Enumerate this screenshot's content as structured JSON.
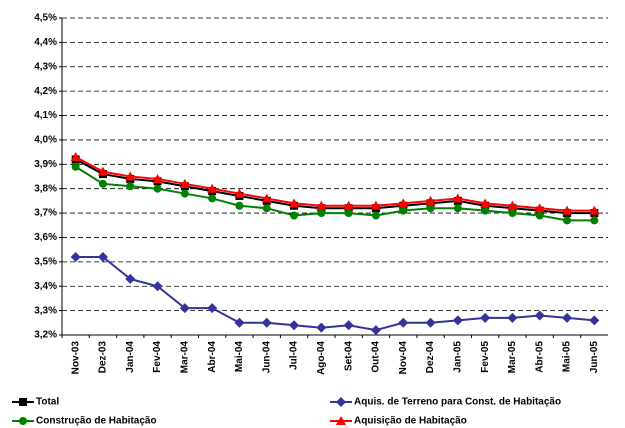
{
  "chart_data": {
    "type": "line",
    "categories": [
      "Nov-03",
      "Dez-03",
      "Jan-04",
      "Fev-04",
      "Mar-04",
      "Abr-04",
      "Mai-04",
      "Jun-04",
      "Jul-04",
      "Ago-04",
      "Set-04",
      "Out-04",
      "Nov-04",
      "Dez-04",
      "Jan-05",
      "Fev-05",
      "Mar-05",
      "Abr-05",
      "Mai-05",
      "Jun-05"
    ],
    "series": [
      {
        "name": "Total",
        "color": "#000000",
        "marker": "square",
        "values": [
          3.92,
          3.86,
          3.84,
          3.83,
          3.81,
          3.79,
          3.77,
          3.75,
          3.73,
          3.72,
          3.72,
          3.72,
          3.73,
          3.74,
          3.75,
          3.73,
          3.72,
          3.71,
          3.7,
          3.7
        ]
      },
      {
        "name": "Aquis. de Terreno para Const. de Habitação",
        "color": "#333399",
        "marker": "diamond",
        "values": [
          3.52,
          3.52,
          3.43,
          3.4,
          3.31,
          3.31,
          3.25,
          3.25,
          3.24,
          3.23,
          3.24,
          3.22,
          3.25,
          3.25,
          3.26,
          3.27,
          3.27,
          3.28,
          3.27,
          3.26
        ]
      },
      {
        "name": "Construção de Habitação",
        "color": "#008000",
        "marker": "circle",
        "values": [
          3.89,
          3.82,
          3.81,
          3.8,
          3.78,
          3.76,
          3.73,
          3.72,
          3.69,
          3.7,
          3.7,
          3.69,
          3.71,
          3.72,
          3.72,
          3.71,
          3.7,
          3.69,
          3.67,
          3.67
        ]
      },
      {
        "name": "Aquisição de Habitação",
        "color": "#ff0000",
        "marker": "triangle",
        "values": [
          3.93,
          3.87,
          3.85,
          3.84,
          3.82,
          3.8,
          3.78,
          3.76,
          3.74,
          3.73,
          3.73,
          3.73,
          3.74,
          3.75,
          3.76,
          3.74,
          3.73,
          3.72,
          3.71,
          3.71
        ]
      }
    ],
    "ylim": [
      3.2,
      4.5
    ],
    "yticks": [
      {
        "value": 3.2,
        "label": "3,2%"
      },
      {
        "value": 3.3,
        "label": "3,3%"
      },
      {
        "value": 3.4,
        "label": "3,4%"
      },
      {
        "value": 3.5,
        "label": "3,5%"
      },
      {
        "value": 3.6,
        "label": "3,6%"
      },
      {
        "value": 3.7,
        "label": "3,7%"
      },
      {
        "value": 3.8,
        "label": "3,8%"
      },
      {
        "value": 3.9,
        "label": "3,9%"
      },
      {
        "value": 4.0,
        "label": "4,0%"
      },
      {
        "value": 4.1,
        "label": "4,1%"
      },
      {
        "value": 4.2,
        "label": "4,2%"
      },
      {
        "value": 4.3,
        "label": "4,3%"
      },
      {
        "value": 4.4,
        "label": "4,4%"
      },
      {
        "value": 4.5,
        "label": "4,5%"
      }
    ],
    "grid": true
  }
}
